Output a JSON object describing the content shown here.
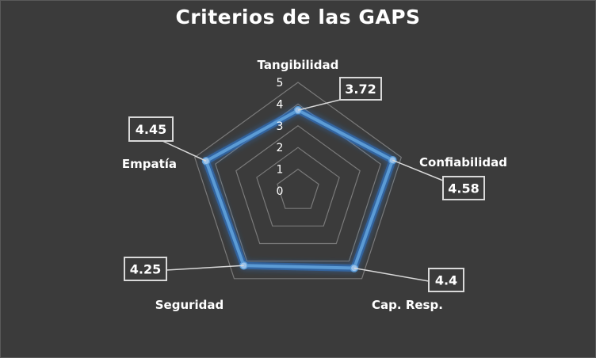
{
  "chart_data": {
    "type": "radar",
    "title": "Criterios de las GAPS",
    "categories": [
      "Tangibilidad",
      "Confiabilidad",
      "Cap. Resp.",
      "Seguridad",
      "Empatía"
    ],
    "series": [
      {
        "values": [
          3.72,
          4.58,
          4.4,
          4.25,
          4.45
        ]
      }
    ],
    "value_labels": [
      "3.72",
      "4.58",
      "4.4",
      "4.25",
      "4.45"
    ],
    "ticks": [
      "0",
      "1",
      "2",
      "3",
      "4",
      "5"
    ],
    "rlim": [
      0,
      5
    ],
    "grid": true,
    "legend": "none",
    "colors": {
      "background": "#3b3b3b",
      "grid": "#7a7a7a",
      "series": "#5b9bd5",
      "glow": "#2f74c8",
      "text": "#ffffff",
      "label_box": "#d9d9d9"
    }
  }
}
